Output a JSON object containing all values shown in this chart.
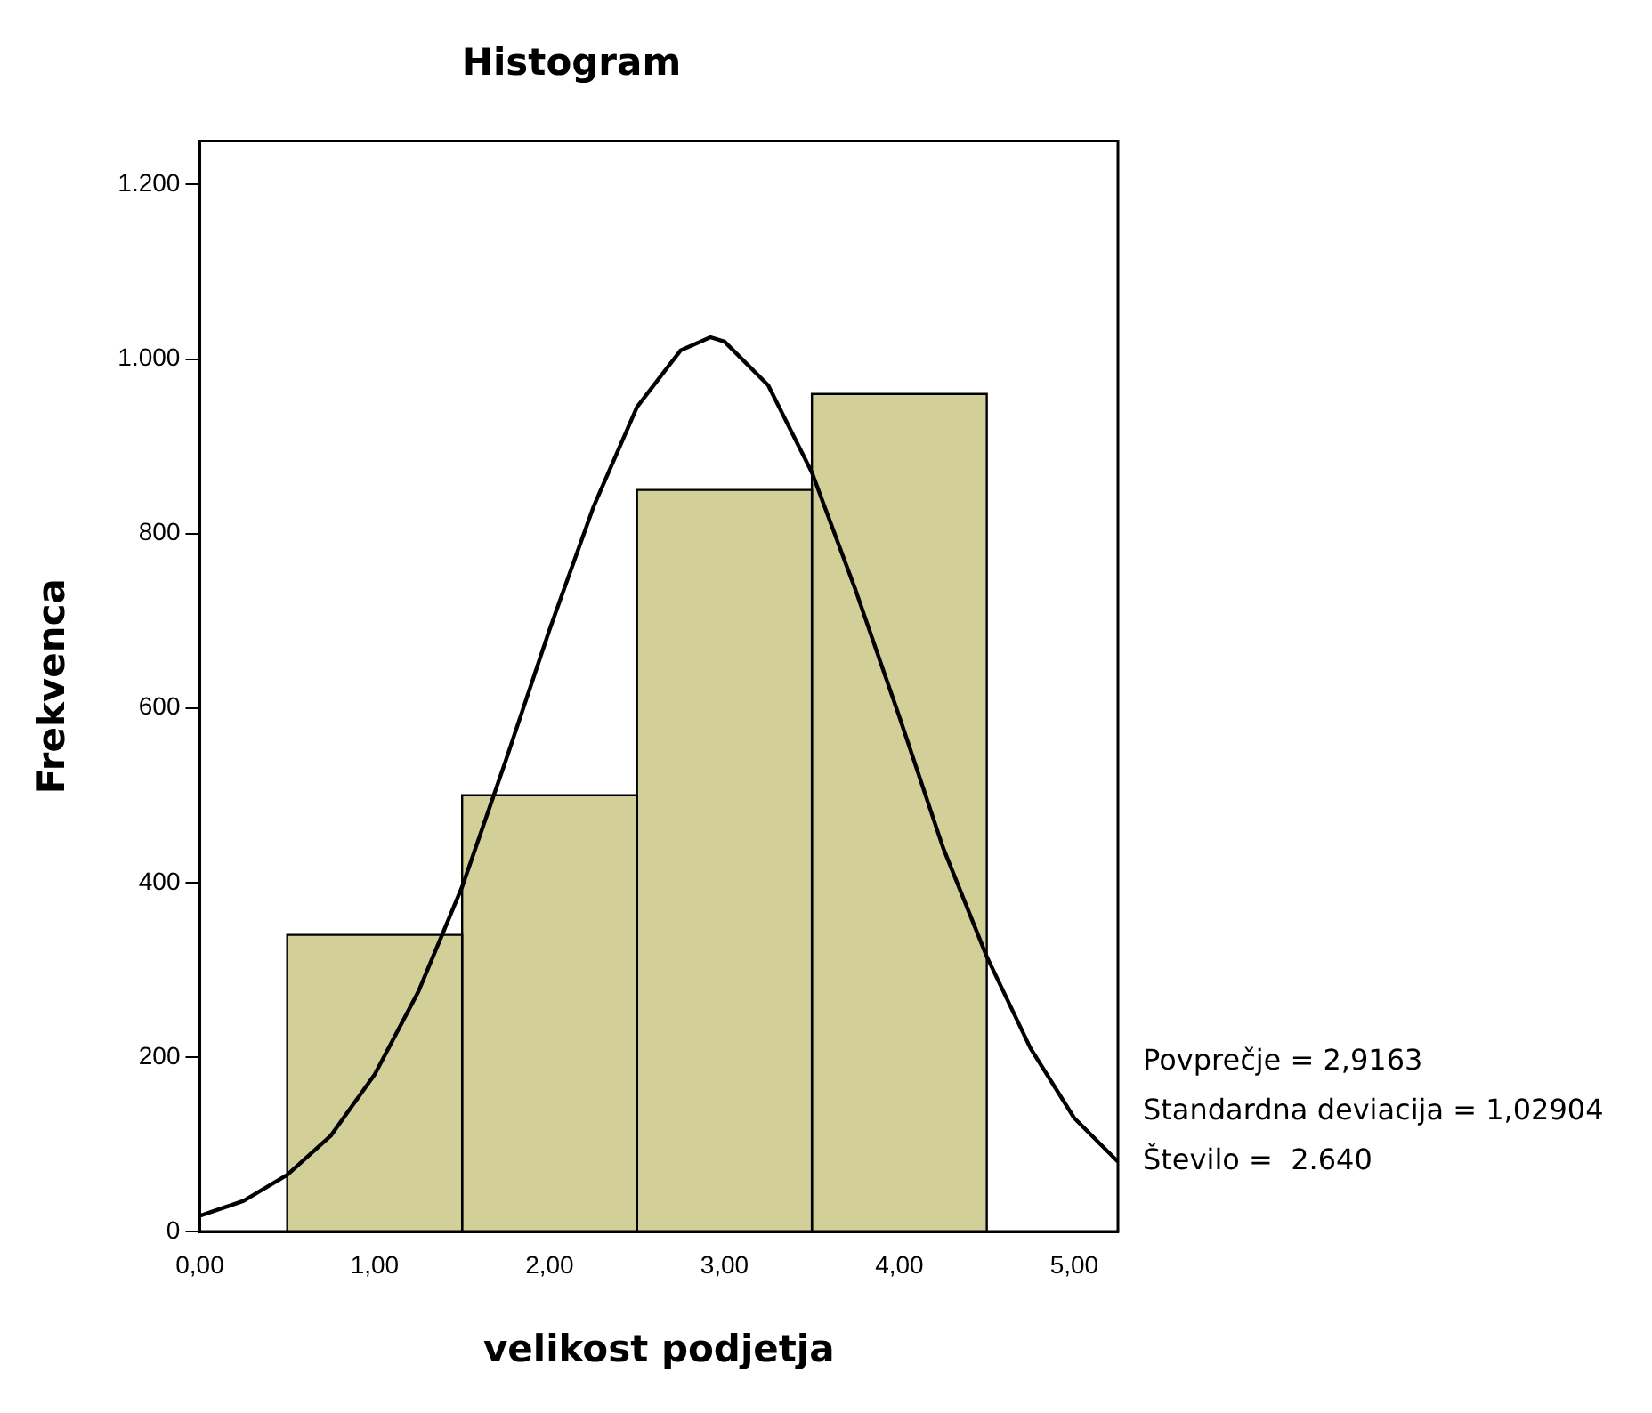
{
  "chart_data": {
    "type": "histogram",
    "title": "Histogram",
    "xlabel": "velikost podjetja",
    "ylabel": "Frekvenca",
    "bins": [
      0.5,
      1.5,
      2.5,
      3.5,
      4.5
    ],
    "values": [
      340,
      500,
      850,
      960
    ],
    "color": "#d3cf98",
    "series": [
      {
        "type": "line",
        "color": "#000000",
        "x": [
          0,
          0.25,
          0.5,
          0.75,
          1,
          1.25,
          1.5,
          1.75,
          2,
          2.25,
          2.5,
          2.75,
          2.92,
          3,
          3.25,
          3.5,
          3.75,
          4,
          4.25,
          4.5,
          4.75,
          5,
          5.25
        ],
        "values": [
          18,
          35,
          65,
          110,
          180,
          275,
          395,
          540,
          690,
          830,
          945,
          1010,
          1025,
          1020,
          970,
          870,
          735,
          590,
          440,
          315,
          210,
          130,
          80
        ]
      }
    ],
    "xlim": [
      0,
      5.25
    ],
    "xticks": [
      {
        "value": 0,
        "label": "0,00"
      },
      {
        "value": 1,
        "label": "1,00"
      },
      {
        "value": 2,
        "label": "2,00"
      },
      {
        "value": 3,
        "label": "3,00"
      },
      {
        "value": 4,
        "label": "4,00"
      },
      {
        "value": 5,
        "label": "5,00"
      }
    ],
    "ylim": [
      0,
      1250
    ],
    "yticks": [
      0,
      200,
      400,
      600,
      800,
      {
        "value": 1000,
        "label": "1.000"
      },
      {
        "value": 1200,
        "label": "1.200"
      }
    ],
    "annotations": [
      "Povprečje = 2,9163",
      "Standardna deviacija = 1,02904",
      "Število =  2.640"
    ],
    "grid": false,
    "legend": false,
    "marker": "none"
  }
}
